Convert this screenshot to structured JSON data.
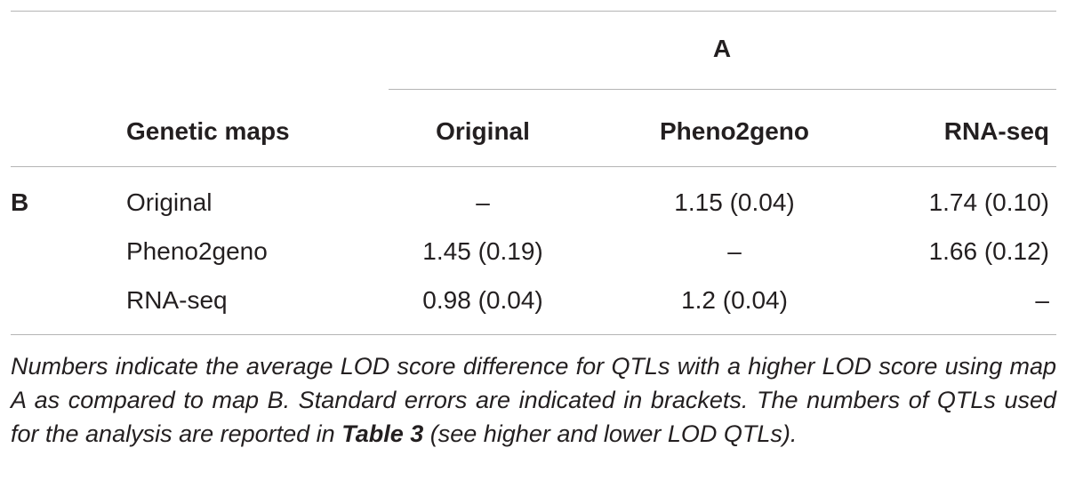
{
  "table": {
    "group_header": "A",
    "row_group": "B",
    "header": [
      "Genetic maps",
      "Original",
      "Pheno2geno",
      "RNA-seq"
    ],
    "rows": [
      [
        "Original",
        "–",
        "1.15 (0.04)",
        "1.74 (0.10)"
      ],
      [
        "Pheno2geno",
        "1.45 (0.19)",
        "–",
        "1.66 (0.12)"
      ],
      [
        "RNA-seq",
        "0.98 (0.04)",
        "1.2 (0.04)",
        "–"
      ]
    ]
  },
  "footnote": {
    "before": "Numbers indicate the average LOD score difference for QTLs with a higher LOD score using map A as compared to map B. Standard errors are indicated in brackets. The numbers of QTLs used for the analysis are reported in ",
    "bold": "Table 3",
    "after": " (see higher and lower LOD QTLs)."
  }
}
